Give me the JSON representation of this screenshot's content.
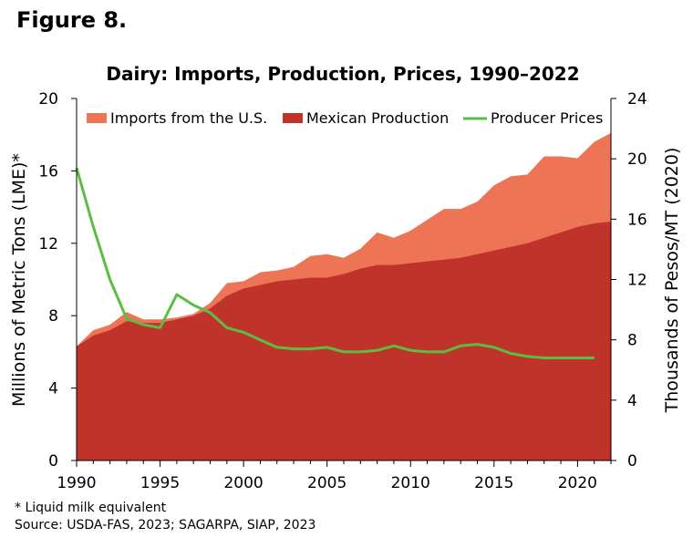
{
  "figure_label": "Figure 8.",
  "notes": {
    "footnote": "* Liquid milk equivalent",
    "source": "Source: USDA-FAS, 2023; SAGARPA, SIAP, 2023"
  },
  "chart_data": {
    "type": "area",
    "title": "Dairy: Imports, Production, Prices, 1990–2022",
    "xlabel": "",
    "ylabel": "Millions of Metric Tons (LME)*",
    "y2label": "Thousands of Pesos/MT (2020)",
    "xlim": [
      1990,
      2022
    ],
    "ylim": [
      0,
      20
    ],
    "y2lim": [
      0,
      24
    ],
    "x_ticks": [
      1990,
      1995,
      2000,
      2005,
      2010,
      2015,
      2020
    ],
    "y_ticks": [
      0,
      4,
      8,
      12,
      16,
      20
    ],
    "y2_ticks": [
      0,
      4,
      8,
      12,
      16,
      20,
      24
    ],
    "legend_position": "top",
    "colors": {
      "imports": "#ED7454",
      "production": "#C0332A",
      "prices": "#5BBE44"
    },
    "x": [
      1990,
      1991,
      1992,
      1993,
      1994,
      1995,
      1996,
      1997,
      1998,
      1999,
      2000,
      2001,
      2002,
      2003,
      2004,
      2005,
      2006,
      2007,
      2008,
      2009,
      2010,
      2011,
      2012,
      2013,
      2014,
      2015,
      2016,
      2017,
      2018,
      2019,
      2020,
      2021,
      2022
    ],
    "series": [
      {
        "name": "Imports from the U.S.",
        "kind": "stacked-area-total",
        "axis": "left",
        "values": [
          6.3,
          7.2,
          7.5,
          8.2,
          7.8,
          7.8,
          7.9,
          8.1,
          8.7,
          9.8,
          9.9,
          10.4,
          10.5,
          10.7,
          11.3,
          11.4,
          11.2,
          11.7,
          12.6,
          12.3,
          12.7,
          13.3,
          13.9,
          13.9,
          14.3,
          15.2,
          15.7,
          15.8,
          16.8,
          16.8,
          16.7,
          17.6,
          18.1
        ]
      },
      {
        "name": "Mexican Production",
        "kind": "area",
        "axis": "left",
        "values": [
          6.3,
          6.9,
          7.2,
          7.7,
          7.6,
          7.6,
          7.8,
          8.0,
          8.4,
          9.1,
          9.5,
          9.7,
          9.9,
          10.0,
          10.1,
          10.1,
          10.3,
          10.6,
          10.8,
          10.8,
          10.9,
          11.0,
          11.1,
          11.2,
          11.4,
          11.6,
          11.8,
          12.0,
          12.3,
          12.6,
          12.9,
          13.1,
          13.2
        ]
      },
      {
        "name": "Producer Prices",
        "kind": "line",
        "axis": "right",
        "values": [
          19.4,
          15.5,
          12.0,
          9.4,
          9.0,
          8.8,
          11.0,
          10.3,
          9.8,
          8.8,
          8.5,
          8.0,
          7.5,
          7.4,
          7.4,
          7.5,
          7.2,
          7.2,
          7.3,
          7.6,
          7.3,
          7.2,
          7.2,
          7.6,
          7.7,
          7.5,
          7.1,
          6.9,
          6.8,
          6.8,
          6.8,
          6.8,
          null
        ]
      }
    ]
  }
}
